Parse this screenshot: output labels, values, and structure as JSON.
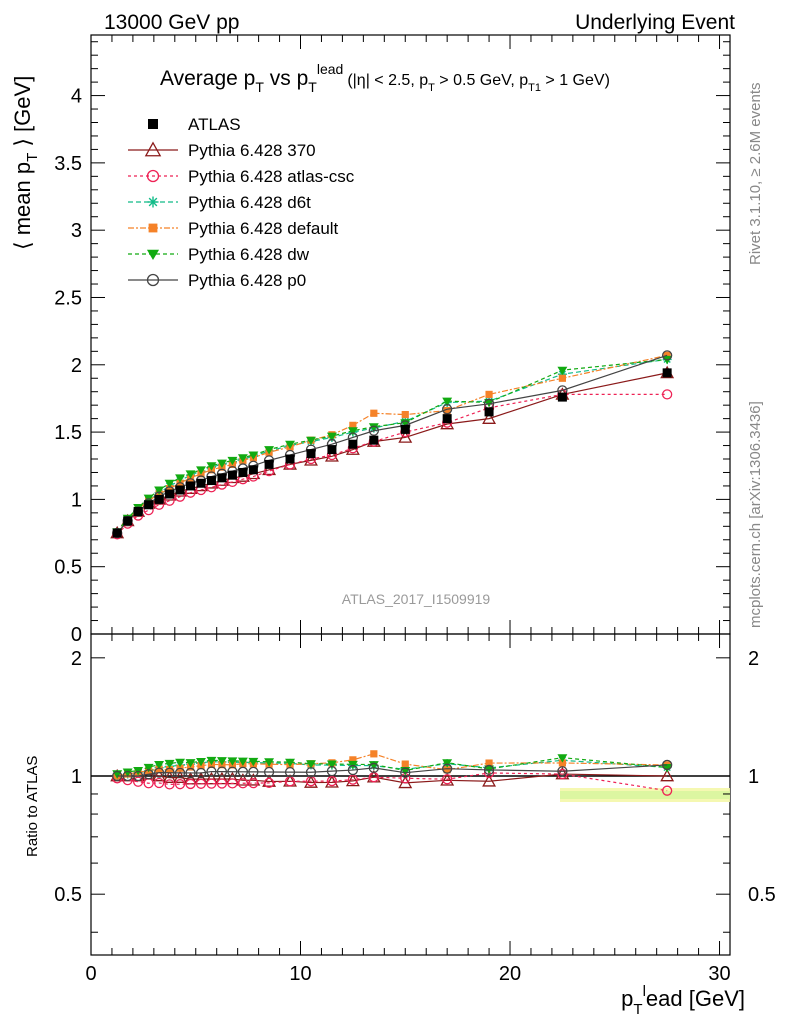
{
  "header": {
    "left": "13000 GeV pp",
    "right": "Underlying Event"
  },
  "plot_title": {
    "main_pre": "Average p",
    "main_sub1": "T",
    "main_mid": " vs p",
    "main_sub2": "T",
    "main_sup2": "lead",
    "cut1": "(|η| < 2.5, p",
    "cut1_sub": "T",
    "cut2": " > 0.5 GeV, p",
    "cut2_sub": "T1",
    "cut3": " > 1 GeV)"
  },
  "side_labels": {
    "rivet": "Rivet 3.1.10, ≥ 2.6M events",
    "mcplots": "mcplots.cern.ch [arXiv:1306.3436]"
  },
  "watermark": "ATLAS_2017_I1509919",
  "axes": {
    "top_ylabel": "⟨ mean p_T ⟩ [GeV]",
    "ratio_ylabel": "Ratio to ATLAS",
    "xlabel_pre": "p",
    "xlabel_sub": "T",
    "xlabel_sup": "l",
    "xlabel_post": "ead [GeV]",
    "top_ylabel_parts": {
      "pre": "⟨ mean p",
      "sub": "T",
      "post": " ⟩ [GeV]"
    }
  },
  "chart_data": {
    "type": "line",
    "x_range": [
      0,
      30.5
    ],
    "top_ylim": [
      0,
      4.45
    ],
    "ratio_ylim": [
      0.35,
      2.3
    ],
    "x_ticks": [
      0,
      10,
      20,
      30
    ],
    "top_y_ticks": [
      "0",
      "0.5",
      "1",
      "1.5",
      "2",
      "2.5",
      "3",
      "3.5",
      "4"
    ],
    "ratio_y_ticks": [
      "0.5",
      "1",
      "2"
    ],
    "x": [
      1.25,
      1.75,
      2.25,
      2.75,
      3.25,
      3.75,
      4.25,
      4.75,
      5.25,
      5.75,
      6.25,
      6.75,
      7.25,
      7.75,
      8.5,
      9.5,
      10.5,
      11.5,
      12.5,
      13.5,
      15.0,
      17.0,
      19.0,
      22.5,
      27.5
    ],
    "series": [
      {
        "name": "ATLAS",
        "color": "#000000",
        "marker": "square",
        "dash": "none",
        "values": [
          0.75,
          0.84,
          0.91,
          0.96,
          1.0,
          1.04,
          1.07,
          1.1,
          1.12,
          1.14,
          1.16,
          1.18,
          1.2,
          1.22,
          1.26,
          1.3,
          1.34,
          1.37,
          1.41,
          1.44,
          1.52,
          1.6,
          1.65,
          1.76,
          1.94
        ]
      },
      {
        "name": "Pythia 6.428 370",
        "color": "#8b1a1a",
        "marker": "triangle-open",
        "dash": "none",
        "values": [
          0.75,
          0.84,
          0.91,
          0.97,
          1.0,
          1.03,
          1.06,
          1.08,
          1.1,
          1.12,
          1.14,
          1.16,
          1.17,
          1.19,
          1.22,
          1.26,
          1.29,
          1.32,
          1.37,
          1.43,
          1.46,
          1.56,
          1.6,
          1.78,
          1.94
        ]
      },
      {
        "name": "Pythia 6.428 atlas-csc",
        "color": "#ee2255",
        "marker": "circle-open",
        "dash": "3,3",
        "values": [
          0.74,
          0.82,
          0.88,
          0.92,
          0.96,
          0.99,
          1.02,
          1.05,
          1.07,
          1.09,
          1.11,
          1.13,
          1.15,
          1.17,
          1.21,
          1.26,
          1.3,
          1.33,
          1.38,
          1.43,
          1.5,
          1.57,
          1.68,
          1.78,
          1.78
        ]
      },
      {
        "name": "Pythia 6.428 d6t",
        "color": "#11bb88",
        "marker": "star",
        "dash": "5,3",
        "values": [
          0.75,
          0.85,
          0.93,
          0.99,
          1.05,
          1.1,
          1.14,
          1.18,
          1.21,
          1.24,
          1.26,
          1.28,
          1.3,
          1.32,
          1.36,
          1.4,
          1.43,
          1.46,
          1.5,
          1.53,
          1.58,
          1.72,
          1.73,
          1.93,
          2.04
        ]
      },
      {
        "name": "Pythia 6.428 default",
        "color": "#f58228",
        "marker": "square-small",
        "dash": "6,2,2,2",
        "values": [
          0.75,
          0.85,
          0.93,
          0.99,
          1.04,
          1.08,
          1.12,
          1.16,
          1.19,
          1.22,
          1.24,
          1.26,
          1.29,
          1.31,
          1.35,
          1.39,
          1.44,
          1.48,
          1.55,
          1.64,
          1.63,
          1.66,
          1.78,
          1.9,
          2.07
        ]
      },
      {
        "name": "Pythia 6.428 dw",
        "color": "#11aa11",
        "marker": "triangle-down",
        "dash": "4,3",
        "values": [
          0.76,
          0.86,
          0.94,
          1.01,
          1.07,
          1.12,
          1.16,
          1.19,
          1.22,
          1.25,
          1.27,
          1.29,
          1.31,
          1.33,
          1.37,
          1.41,
          1.44,
          1.47,
          1.51,
          1.54,
          1.57,
          1.73,
          1.72,
          1.96,
          2.04
        ]
      },
      {
        "name": "Pythia 6.428 p0",
        "color": "#444444",
        "marker": "circle-open",
        "dash": "none",
        "values": [
          0.75,
          0.84,
          0.91,
          0.97,
          1.02,
          1.06,
          1.09,
          1.12,
          1.14,
          1.17,
          1.19,
          1.21,
          1.23,
          1.25,
          1.29,
          1.33,
          1.37,
          1.41,
          1.46,
          1.51,
          1.55,
          1.67,
          1.71,
          1.81,
          2.07
        ]
      }
    ]
  }
}
